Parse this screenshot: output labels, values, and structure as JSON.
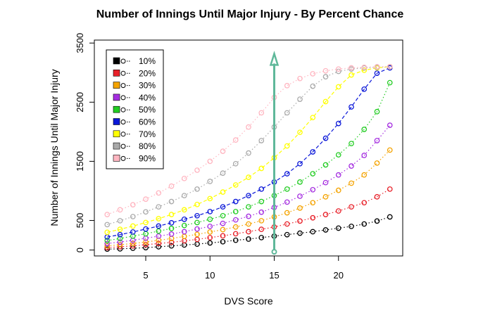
{
  "chart_data": {
    "type": "line",
    "title": "Number of Innings Until Major Injury - By Percent Chance",
    "xlabel": "DVS Score",
    "ylabel": "Number of Innings Until Major Injury",
    "xlim": [
      1,
      25
    ],
    "ylim": [
      -100,
      3550
    ],
    "xticks": [
      5,
      10,
      15,
      20
    ],
    "yticks": [
      0,
      500,
      1500,
      2500,
      3500
    ],
    "x": [
      2,
      3,
      4,
      5,
      6,
      7,
      8,
      9,
      10,
      11,
      12,
      13,
      14,
      15,
      16,
      17,
      18,
      19,
      20,
      21,
      22,
      23,
      24
    ],
    "legend_position": "top-left",
    "highlight_x": 15,
    "highlight_color": "#5fb89a",
    "series": [
      {
        "name": "10%",
        "color": "#000000",
        "line_style": "dotted",
        "values": [
          15,
          20,
          30,
          40,
          55,
          70,
          85,
          100,
          120,
          140,
          165,
          185,
          210,
          235,
          260,
          285,
          310,
          340,
          370,
          400,
          440,
          490,
          560
        ]
      },
      {
        "name": "20%",
        "color": "#e8212a",
        "line_style": "dotted",
        "values": [
          40,
          55,
          70,
          90,
          110,
          130,
          155,
          180,
          210,
          240,
          275,
          310,
          350,
          390,
          440,
          490,
          545,
          600,
          660,
          730,
          800,
          900,
          1030
        ]
      },
      {
        "name": "30%",
        "color": "#f4a300",
        "line_style": "dotted",
        "values": [
          70,
          90,
          110,
          135,
          165,
          195,
          230,
          265,
          305,
          345,
          390,
          440,
          495,
          560,
          630,
          710,
          800,
          900,
          1010,
          1130,
          1270,
          1470,
          1690
        ]
      },
      {
        "name": "40%",
        "color": "#a52ee0",
        "line_style": "dotted",
        "values": [
          110,
          135,
          165,
          200,
          235,
          270,
          310,
          355,
          400,
          450,
          510,
          570,
          640,
          720,
          810,
          910,
          1020,
          1140,
          1270,
          1420,
          1600,
          1850,
          2110
        ]
      },
      {
        "name": "50%",
        "color": "#22cc22",
        "line_style": "dotted",
        "values": [
          160,
          195,
          235,
          275,
          320,
          365,
          415,
          465,
          520,
          580,
          650,
          730,
          820,
          920,
          1030,
          1150,
          1290,
          1440,
          1610,
          1800,
          2040,
          2340,
          2830
        ]
      },
      {
        "name": "60%",
        "color": "#0a17d8",
        "line_style": "dashed",
        "values": [
          220,
          260,
          305,
          355,
          405,
          460,
          520,
          580,
          650,
          730,
          820,
          920,
          1030,
          1150,
          1290,
          1460,
          1660,
          1890,
          2140,
          2420,
          2720,
          2990,
          3080
        ]
      },
      {
        "name": "70%",
        "color": "#ffff00",
        "line_style": "dashed",
        "values": [
          300,
          350,
          405,
          465,
          530,
          600,
          680,
          770,
          870,
          980,
          1100,
          1230,
          1380,
          1560,
          1760,
          1990,
          2240,
          2510,
          2760,
          2960,
          3040,
          3080,
          3100
        ]
      },
      {
        "name": "80%",
        "color": "#aaaaaa",
        "line_style": "dotted",
        "values": [
          430,
          495,
          565,
          645,
          730,
          820,
          920,
          1030,
          1160,
          1300,
          1460,
          1640,
          1850,
          2080,
          2320,
          2550,
          2770,
          2930,
          3020,
          3060,
          3080,
          3090,
          3100
        ]
      },
      {
        "name": "90%",
        "color": "#ffb6c1",
        "line_style": "dotted",
        "values": [
          600,
          680,
          765,
          860,
          965,
          1080,
          1210,
          1350,
          1500,
          1670,
          1860,
          2080,
          2320,
          2580,
          2780,
          2900,
          2980,
          3030,
          3060,
          3080,
          3090,
          3100,
          3100
        ]
      }
    ]
  }
}
